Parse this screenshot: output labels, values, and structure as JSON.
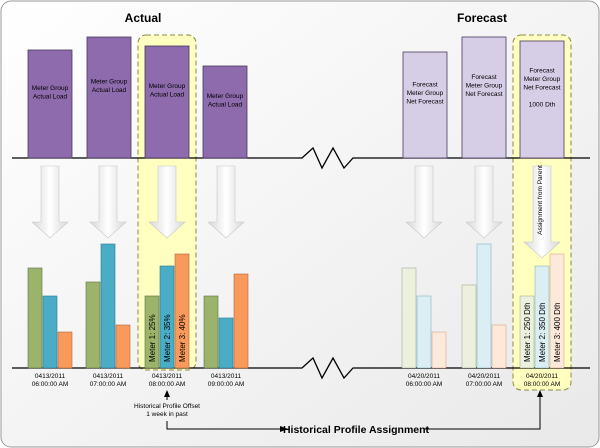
{
  "headings": {
    "actual": "Actual",
    "forecast": "Forecast"
  },
  "actual": {
    "load_boxes": [
      {
        "lines": [
          "Meter Group",
          "Actual Load"
        ]
      },
      {
        "lines": [
          "Meter Group",
          "Actual Load"
        ]
      },
      {
        "lines": [
          "Meter Group",
          "Actual Load"
        ]
      },
      {
        "lines": [
          "Meter Group",
          "Actual Load"
        ]
      }
    ],
    "times": [
      {
        "date": "0413/2011",
        "time": "06:00:00 AM"
      },
      {
        "date": "0413/2011",
        "time": "07:00:00 AM"
      },
      {
        "date": "0413/2011",
        "time": "08:00:00 AM"
      },
      {
        "date": "0413/2011",
        "time": "09:00:00 AM"
      }
    ],
    "highlight_labels": [
      "Meter 1: 25%",
      "Meter 2: 35%",
      "Meter 3: 40%"
    ]
  },
  "forecast": {
    "load_boxes": [
      {
        "lines": [
          "Forecast",
          "Meter Group",
          "Net Forecast"
        ]
      },
      {
        "lines": [
          "Forecast",
          "Meter Group",
          "Net Forecast"
        ]
      },
      {
        "lines": [
          "Forecast",
          "Meter Group",
          "Net Forecast",
          "",
          "1000 Dth"
        ]
      }
    ],
    "times": [
      {
        "date": "04/20/2011",
        "time": "06:00:00 AM"
      },
      {
        "date": "04/20/2011",
        "time": "07:00:00 AM"
      },
      {
        "date": "04/20/2011",
        "time": "08:00:00 AM"
      }
    ],
    "highlight_labels": [
      "Meter 1: 250 Dth",
      "Meter 2: 350 Dth",
      "Meter 3: 400 Dth"
    ],
    "assignment_label": "Assignment from Parent"
  },
  "offset_note": [
    "Historical Profile Offset",
    "1 week in past"
  ],
  "assignment_title": "Historical Profile Assignment",
  "colors": {
    "actual_box": "#8d6bac",
    "forecast_box": "#d6cde6",
    "meter1": "#9bb36a",
    "meter2": "#4bacc6",
    "meter3": "#f79a5b",
    "meter1_light": "#ebf1de",
    "meter2_light": "#dbeef3",
    "meter3_light": "#fde9d9",
    "highlight_fill": "#ffffc0",
    "highlight_stroke": "#8c8a4a"
  }
}
